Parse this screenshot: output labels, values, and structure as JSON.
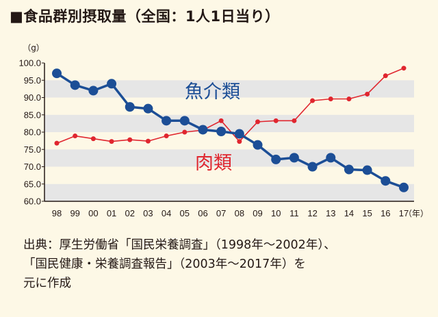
{
  "title": "■食品群別摂取量（全国：1人1日当り）",
  "source_lines": [
    "出典：厚生労働省「国民栄養調査」（1998年〜2002年）、",
    "「国民健康・栄養調査報告」（2003年〜2017年）を",
    "元に作成"
  ],
  "colors": {
    "background": "#fdf8e6",
    "band": "#e6e6e6",
    "fish": "#1c4e96",
    "meat": "#e0262f",
    "text": "#231815"
  },
  "chart_data": {
    "type": "line",
    "title": "食品群別摂取量（全国：1人1日当り）",
    "ylabel": "（g）",
    "xlabel": "（年）",
    "ylim": [
      60.0,
      100.0
    ],
    "yticks": [
      "100.0",
      "95.0",
      "90.0",
      "85.0",
      "80.0",
      "75.0",
      "70.0",
      "65.0",
      "60.0"
    ],
    "categories": [
      "98",
      "99",
      "00",
      "01",
      "02",
      "03",
      "04",
      "05",
      "06",
      "07",
      "08",
      "09",
      "10",
      "11",
      "12",
      "13",
      "14",
      "15",
      "16",
      "17"
    ],
    "grid": "alternating horizontal bands",
    "legend": "inline labels",
    "series": [
      {
        "name": "魚介類",
        "color": "#1c4e96",
        "values": [
          97.0,
          93.6,
          92.0,
          94.0,
          87.3,
          86.8,
          83.3,
          83.3,
          80.7,
          80.2,
          79.5,
          76.3,
          72.1,
          72.6,
          70.0,
          72.6,
          69.2,
          69.0,
          65.9,
          64.0
        ]
      },
      {
        "name": "肉類",
        "color": "#e0262f",
        "values": [
          76.8,
          78.9,
          78.1,
          77.3,
          77.8,
          77.4,
          78.9,
          80.0,
          80.6,
          83.3,
          77.3,
          83.0,
          83.3,
          83.3,
          89.1,
          89.6,
          89.6,
          91.0,
          96.3,
          98.5
        ]
      }
    ]
  }
}
